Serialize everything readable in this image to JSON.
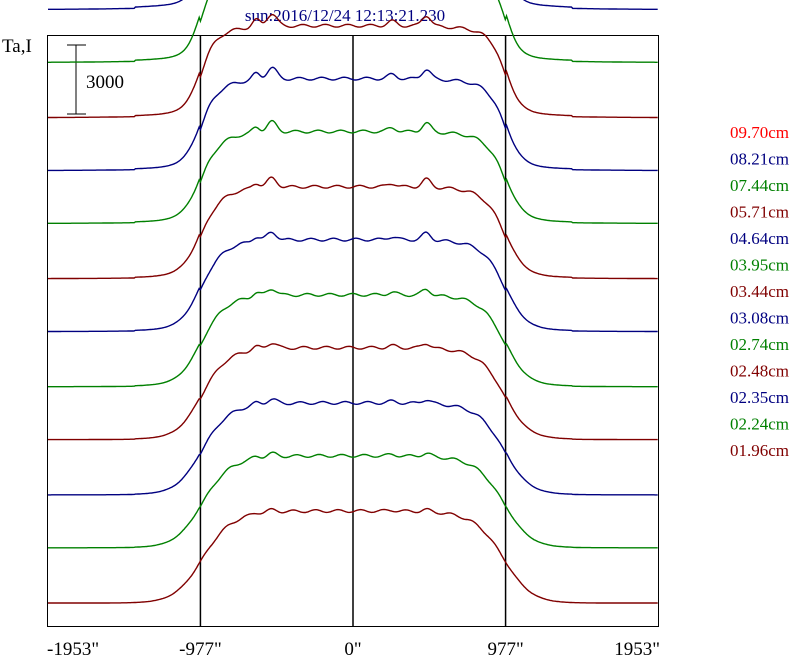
{
  "chart_data": {
    "type": "line",
    "title": "sun:2016/12/24 12:13:21.230",
    "ylabel": "Ta,I",
    "scale_bar_label": "3000",
    "x_ticks": [
      "-1953\"",
      "-977\"",
      "0\"",
      "977\"",
      "1953\""
    ],
    "x_tick_values": [
      -1953,
      -977,
      0,
      977,
      1953
    ],
    "vertical_markers": [
      -977,
      0,
      977
    ],
    "xlim": [
      -1953,
      1953
    ],
    "series": [
      {
        "name": "09.70cm",
        "color": "#ff0000",
        "offset": 28200
      },
      {
        "name": "08.21cm",
        "color": "#000080",
        "offset": 25800
      },
      {
        "name": "07.44cm",
        "color": "#008000",
        "offset": 23500
      },
      {
        "name": "05.71cm",
        "color": "#800000",
        "offset": 21100
      },
      {
        "name": "04.64cm",
        "color": "#000080",
        "offset": 18800
      },
      {
        "name": "03.95cm",
        "color": "#008000",
        "offset": 16500
      },
      {
        "name": "03.44cm",
        "color": "#800000",
        "offset": 14100
      },
      {
        "name": "03.08cm",
        "color": "#000080",
        "offset": 11800
      },
      {
        "name": "02.74cm",
        "color": "#008000",
        "offset": 9400
      },
      {
        "name": "02.48cm",
        "color": "#800000",
        "offset": 7100
      },
      {
        "name": "02.35cm",
        "color": "#000080",
        "offset": 4700
      },
      {
        "name": "02.24cm",
        "color": "#008000",
        "offset": 2400
      },
      {
        "name": "01.96cm",
        "color": "#800000",
        "offset": 0
      }
    ]
  }
}
